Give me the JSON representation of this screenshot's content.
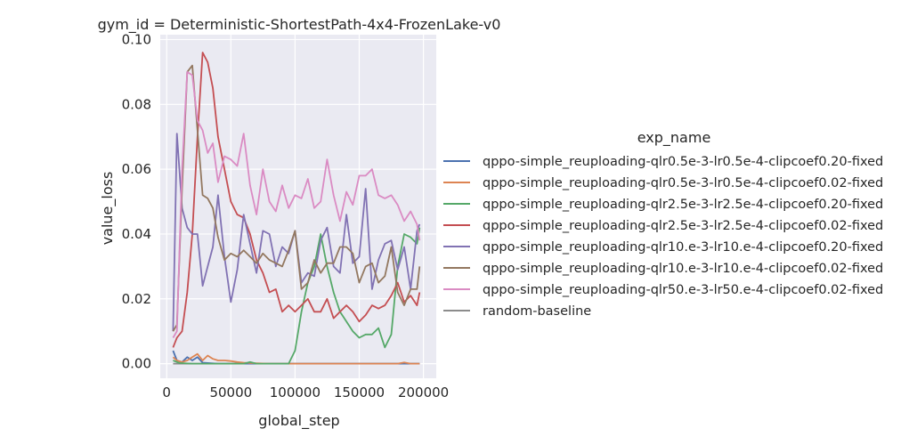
{
  "chart_data": {
    "type": "line",
    "title": "gym_id = Deterministic-ShortestPath-4x4-FrozenLake-v0",
    "xlabel": "global_step",
    "ylabel": "value_loss",
    "xlim": [
      -5000,
      210000
    ],
    "ylim": [
      -0.0045,
      0.1015
    ],
    "xticks": [
      0,
      50000,
      100000,
      150000,
      200000
    ],
    "xtick_labels": [
      "0",
      "50000",
      "100000",
      "150000",
      "200000"
    ],
    "yticks": [
      0.0,
      0.02,
      0.04,
      0.06,
      0.08,
      0.1
    ],
    "ytick_labels": [
      "0.00",
      "0.02",
      "0.04",
      "0.06",
      "0.08",
      "0.10"
    ],
    "grid": true,
    "legend_title": "exp_name",
    "legend_position": "right",
    "series": [
      {
        "name": "qppo-simple_reuploading-qlr0.5e-3-lr0.5e-4-clipcoef0.20-fixed",
        "color": "#4c72b0",
        "x": [
          5000,
          8000,
          12000,
          16000,
          20000,
          24000,
          28000,
          32000,
          40000,
          60000,
          100000,
          150000,
          197000
        ],
        "y": [
          0.004,
          0.001,
          0.0005,
          0.002,
          0.001,
          0.002,
          0.0003,
          0.0002,
          0.0,
          0.0,
          0.0,
          0.0,
          0.0
        ]
      },
      {
        "name": "qppo-simple_reuploading-qlr0.5e-3-lr0.5e-4-clipcoef0.02-fixed",
        "color": "#dd8452",
        "x": [
          5000,
          8000,
          12000,
          16000,
          20000,
          24000,
          28000,
          32000,
          36000,
          40000,
          45000,
          50000,
          55000,
          60000,
          65000,
          70000,
          80000,
          100000,
          150000,
          180000,
          185000,
          190000,
          197000
        ],
        "y": [
          0.002,
          0.001,
          0.0005,
          0.001,
          0.002,
          0.003,
          0.001,
          0.0025,
          0.0015,
          0.001,
          0.001,
          0.0008,
          0.0005,
          0.0003,
          0.0002,
          0.0001,
          0.0,
          0.0,
          0.0,
          0.0,
          0.0004,
          0.0,
          0.0
        ]
      },
      {
        "name": "qppo-simple_reuploading-qlr2.5e-3-lr2.5e-4-clipcoef0.20-fixed",
        "color": "#55a868",
        "x": [
          5000,
          10000,
          20000,
          40000,
          60000,
          65000,
          70000,
          90000,
          95000,
          100000,
          105000,
          110000,
          115000,
          120000,
          125000,
          130000,
          135000,
          140000,
          145000,
          150000,
          155000,
          160000,
          165000,
          170000,
          175000,
          180000,
          185000,
          190000,
          195000,
          197000
        ],
        "y": [
          0.001,
          0.0002,
          0.0,
          0.0,
          0.0,
          0.0005,
          0.0,
          0.0,
          0.0,
          0.004,
          0.016,
          0.025,
          0.03,
          0.04,
          0.03,
          0.022,
          0.016,
          0.013,
          0.01,
          0.008,
          0.009,
          0.009,
          0.011,
          0.005,
          0.009,
          0.03,
          0.04,
          0.039,
          0.037,
          0.042
        ]
      },
      {
        "name": "qppo-simple_reuploading-qlr2.5e-3-lr2.5e-4-clipcoef0.02-fixed",
        "color": "#c44e52",
        "x": [
          5000,
          8000,
          12000,
          16000,
          20000,
          24000,
          28000,
          32000,
          36000,
          40000,
          45000,
          50000,
          55000,
          60000,
          65000,
          70000,
          75000,
          80000,
          85000,
          90000,
          95000,
          100000,
          105000,
          110000,
          115000,
          120000,
          125000,
          130000,
          135000,
          140000,
          145000,
          150000,
          155000,
          160000,
          165000,
          170000,
          175000,
          180000,
          185000,
          190000,
          195000,
          197000
        ],
        "y": [
          0.005,
          0.008,
          0.01,
          0.022,
          0.04,
          0.07,
          0.096,
          0.093,
          0.085,
          0.07,
          0.06,
          0.05,
          0.046,
          0.045,
          0.04,
          0.032,
          0.028,
          0.022,
          0.023,
          0.016,
          0.018,
          0.016,
          0.018,
          0.02,
          0.016,
          0.016,
          0.02,
          0.014,
          0.016,
          0.018,
          0.016,
          0.013,
          0.015,
          0.018,
          0.017,
          0.018,
          0.021,
          0.025,
          0.019,
          0.021,
          0.018,
          0.022
        ]
      },
      {
        "name": "qppo-simple_reuploading-qlr10.e-3-lr10.e-4-clipcoef0.20-fixed",
        "color": "#8172b3",
        "x": [
          5000,
          8000,
          12000,
          16000,
          20000,
          24000,
          28000,
          32000,
          36000,
          40000,
          45000,
          50000,
          55000,
          60000,
          65000,
          70000,
          75000,
          80000,
          85000,
          90000,
          95000,
          100000,
          105000,
          110000,
          115000,
          120000,
          125000,
          130000,
          135000,
          140000,
          145000,
          150000,
          155000,
          160000,
          165000,
          170000,
          175000,
          180000,
          185000,
          190000,
          195000,
          197000
        ],
        "y": [
          0.01,
          0.071,
          0.048,
          0.042,
          0.04,
          0.04,
          0.024,
          0.03,
          0.036,
          0.052,
          0.033,
          0.019,
          0.029,
          0.046,
          0.037,
          0.028,
          0.041,
          0.04,
          0.03,
          0.036,
          0.034,
          0.041,
          0.025,
          0.028,
          0.027,
          0.038,
          0.042,
          0.03,
          0.028,
          0.046,
          0.031,
          0.033,
          0.054,
          0.023,
          0.032,
          0.037,
          0.038,
          0.029,
          0.036,
          0.023,
          0.041,
          0.043
        ]
      },
      {
        "name": "qppo-simple_reuploading-qlr10.e-3-lr10.e-4-clipcoef0.02-fixed",
        "color": "#937860",
        "x": [
          5000,
          8000,
          12000,
          16000,
          20000,
          24000,
          28000,
          32000,
          36000,
          40000,
          45000,
          50000,
          55000,
          60000,
          65000,
          70000,
          75000,
          80000,
          85000,
          90000,
          95000,
          100000,
          105000,
          110000,
          115000,
          120000,
          125000,
          130000,
          135000,
          140000,
          145000,
          150000,
          155000,
          160000,
          165000,
          170000,
          175000,
          180000,
          185000,
          190000,
          195000,
          197000
        ],
        "y": [
          0.01,
          0.012,
          0.054,
          0.09,
          0.092,
          0.072,
          0.052,
          0.051,
          0.048,
          0.039,
          0.032,
          0.034,
          0.033,
          0.035,
          0.033,
          0.031,
          0.034,
          0.032,
          0.031,
          0.03,
          0.035,
          0.041,
          0.023,
          0.025,
          0.032,
          0.028,
          0.031,
          0.031,
          0.036,
          0.036,
          0.034,
          0.025,
          0.03,
          0.031,
          0.025,
          0.027,
          0.036,
          0.022,
          0.018,
          0.023,
          0.023,
          0.03
        ]
      },
      {
        "name": "qppo-simple_reuploading-qlr50.e-3-lr50.e-4-clipcoef0.02-fixed",
        "color": "#da8bc3",
        "x": [
          5000,
          8000,
          12000,
          16000,
          20000,
          24000,
          28000,
          32000,
          36000,
          40000,
          45000,
          50000,
          55000,
          60000,
          65000,
          70000,
          75000,
          80000,
          85000,
          90000,
          95000,
          100000,
          105000,
          110000,
          115000,
          120000,
          125000,
          130000,
          135000,
          140000,
          145000,
          150000,
          155000,
          160000,
          165000,
          170000,
          175000,
          180000,
          185000,
          190000,
          195000,
          197000
        ],
        "y": [
          0.008,
          0.01,
          0.06,
          0.09,
          0.089,
          0.075,
          0.072,
          0.065,
          0.068,
          0.056,
          0.064,
          0.063,
          0.061,
          0.071,
          0.055,
          0.046,
          0.06,
          0.05,
          0.047,
          0.055,
          0.048,
          0.052,
          0.051,
          0.057,
          0.048,
          0.05,
          0.063,
          0.052,
          0.044,
          0.053,
          0.049,
          0.058,
          0.058,
          0.06,
          0.052,
          0.051,
          0.052,
          0.049,
          0.044,
          0.047,
          0.043,
          0.038
        ]
      },
      {
        "name": "random-baseline",
        "color": "#8c8c8c",
        "x": [
          5000,
          197000
        ],
        "y": [
          0.0,
          0.0
        ]
      }
    ]
  }
}
